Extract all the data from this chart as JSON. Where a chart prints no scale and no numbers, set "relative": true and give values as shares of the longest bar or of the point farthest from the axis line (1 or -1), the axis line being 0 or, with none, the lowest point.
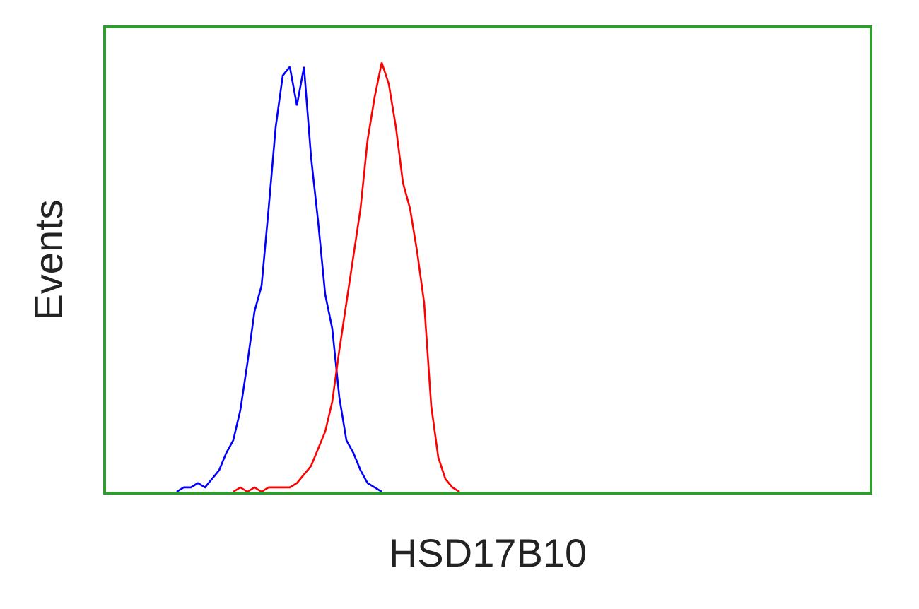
{
  "chart_data": {
    "type": "line",
    "relative": true,
    "xlabel": "HSD17B10",
    "ylabel": "Events",
    "categories": [
      null,
      null,
      null,
      null,
      null,
      null,
      null,
      null,
      null,
      null,
      null,
      null,
      null,
      null,
      null,
      null,
      null,
      null,
      null,
      null,
      null,
      null,
      null,
      null,
      null,
      null,
      null,
      null,
      null,
      null,
      null,
      null,
      null,
      null,
      null,
      null,
      null,
      null,
      null,
      null,
      null,
      null,
      null,
      null,
      null,
      null,
      null,
      null,
      null,
      null,
      null,
      null,
      null,
      null,
      null,
      null,
      null,
      null,
      null,
      null,
      null,
      null,
      null,
      null,
      null,
      null,
      null,
      null,
      null,
      null,
      null,
      null,
      null,
      null,
      null,
      null,
      null,
      null,
      null,
      null,
      null,
      null,
      null,
      null,
      null,
      null,
      null,
      null,
      null,
      null,
      null,
      null,
      null,
      null,
      null,
      null,
      null,
      null,
      null,
      null,
      null,
      null,
      null,
      null,
      null,
      null,
      null,
      null,
      null
    ],
    "series": [
      {
        "color": "#0000ff",
        "values": [
          null,
          null,
          null,
          null,
          null,
          null,
          null,
          null,
          null,
          null,
          0,
          0.01,
          0.01,
          0.02,
          0.01,
          0.03,
          0.05,
          0.09,
          0.12,
          0.19,
          0.3,
          0.42,
          0.48,
          0.66,
          0.85,
          0.97,
          0.99,
          0.9,
          0.99,
          0.78,
          0.63,
          0.46,
          0.38,
          0.22,
          0.12,
          0.09,
          0.05,
          0.02,
          0.01,
          0,
          null,
          null,
          null,
          null,
          null,
          null,
          null,
          null,
          null,
          null,
          null,
          null,
          null,
          null,
          null,
          null,
          null,
          null,
          null,
          null,
          null,
          null,
          null,
          null,
          null,
          null,
          null,
          null,
          null,
          null,
          null,
          null,
          null,
          null,
          null,
          null,
          null,
          null,
          null,
          null,
          null,
          null,
          null,
          null,
          null,
          null,
          null,
          null,
          null,
          null,
          null,
          null,
          null,
          null,
          null,
          null,
          null,
          null,
          null,
          null,
          null,
          null,
          null,
          null,
          null,
          null,
          null,
          null,
          null
        ]
      },
      {
        "color": "#ff0000",
        "values": [
          null,
          null,
          null,
          null,
          null,
          null,
          null,
          null,
          null,
          null,
          null,
          null,
          null,
          null,
          null,
          null,
          null,
          null,
          0,
          0.01,
          0,
          0.01,
          0,
          0.01,
          0.01,
          0.01,
          0.01,
          0.02,
          0.04,
          0.06,
          0.1,
          0.14,
          0.21,
          0.33,
          0.44,
          0.55,
          0.66,
          0.82,
          0.92,
          1,
          0.95,
          0.85,
          0.72,
          0.66,
          0.56,
          0.44,
          0.2,
          0.08,
          0.03,
          0.01,
          0,
          null,
          null,
          null,
          null,
          null,
          null,
          null,
          null,
          null,
          null,
          null,
          null,
          null,
          null,
          null,
          null,
          null,
          null,
          null,
          null,
          null,
          null,
          null,
          null,
          null,
          null,
          null,
          null,
          null,
          null,
          null,
          null,
          null,
          null,
          null,
          null,
          null,
          null,
          null,
          null,
          null,
          null,
          null,
          null,
          null,
          null,
          null,
          null,
          null,
          null,
          null,
          null,
          null,
          null,
          null,
          null,
          null,
          null
        ]
      }
    ]
  }
}
